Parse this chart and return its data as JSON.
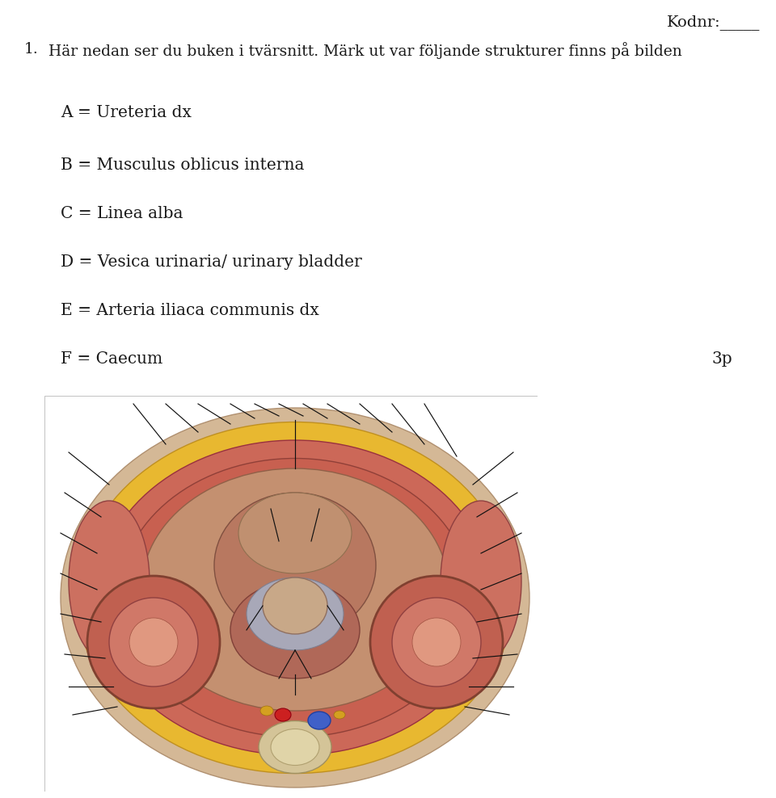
{
  "background_color": "#ffffff",
  "page_width": 9.6,
  "page_height": 9.88,
  "kodnr_text": "Kodnr:",
  "kodnr_underline_text": "_____",
  "question_number": "1.",
  "question_line1": "Här nedan ser du buken i tvärsnitt. Märk ut var följande strukturer finns på bilden",
  "items": [
    "A = Ureteria dx",
    "B = Musculus oblicus interna",
    "C = Linea alba",
    "D = Vesica urinaria/ urinary bladder",
    "E = Arteria iliaca communis dx",
    "F = Caecum"
  ],
  "score_text": "3p",
  "text_color": "#1a1a1a",
  "font_size_header": 13.5,
  "font_size_items": 14.5,
  "font_size_kodnr": 14,
  "font_size_score": 14.5
}
